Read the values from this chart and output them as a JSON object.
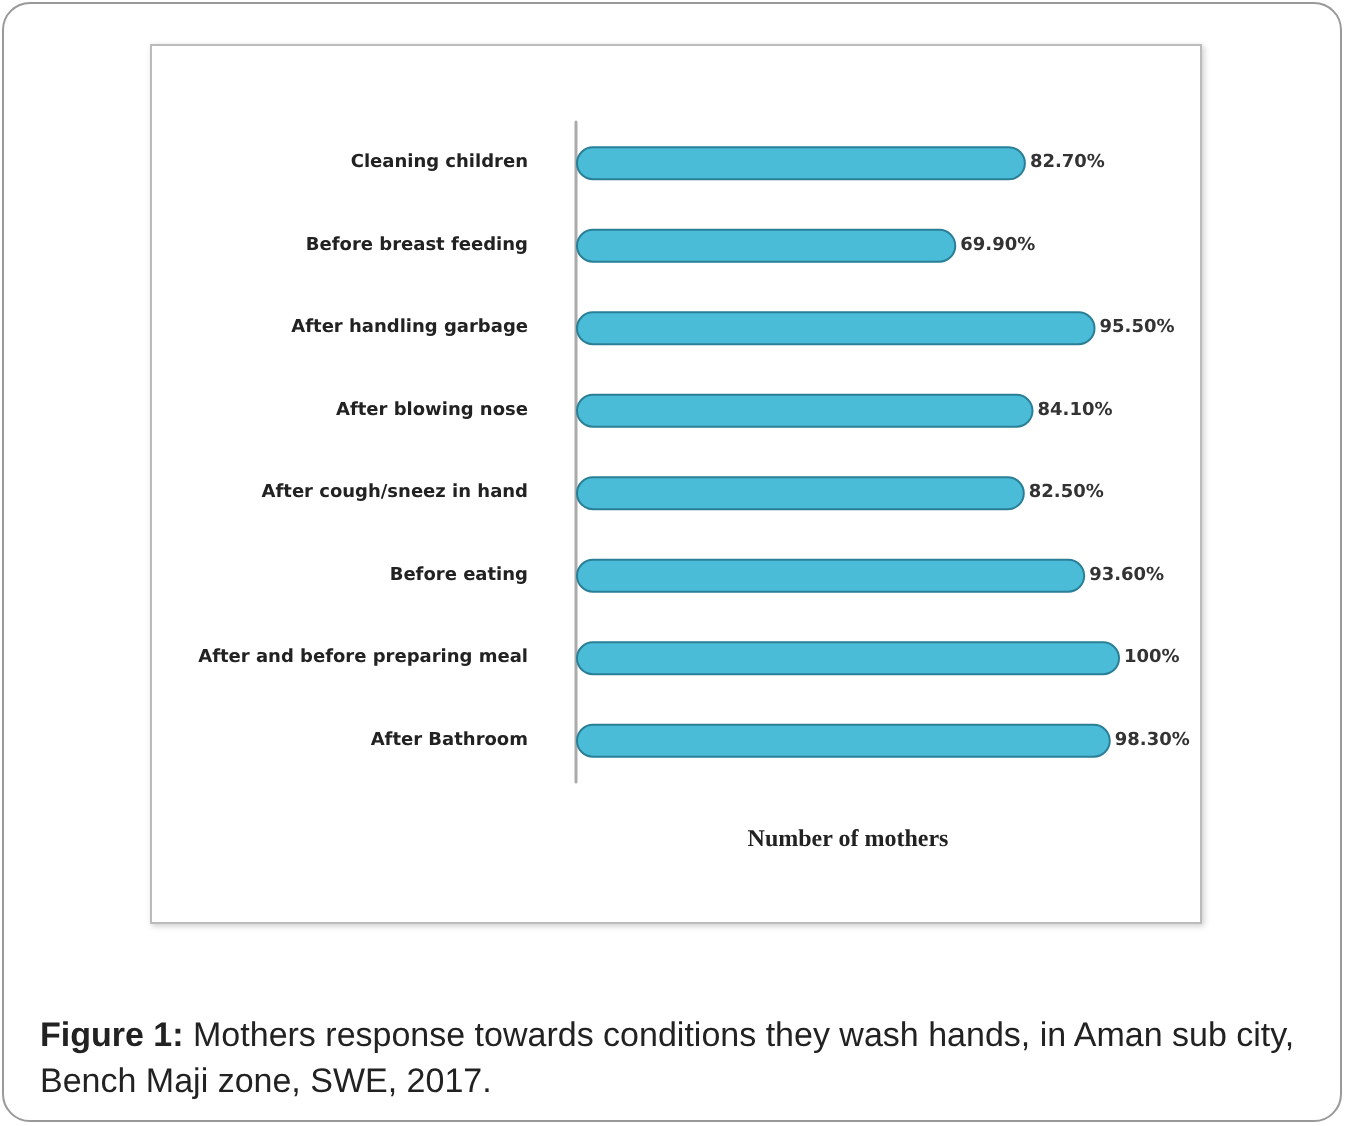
{
  "chart_data": {
    "type": "bar",
    "orientation": "horizontal",
    "xlabel": "Number of mothers",
    "categories": [
      "Cleaning children",
      "Before breast feeding",
      "After handling garbage",
      "After blowing nose",
      "After cough/sneez in hand",
      "Before eating",
      "After and before preparing meal",
      "After Bathroom"
    ],
    "values": [
      82.7,
      69.9,
      95.5,
      84.1,
      82.5,
      93.6,
      100,
      98.3
    ],
    "value_labels": [
      "82.70%",
      "69.90%",
      "95.50%",
      "84.10%",
      "82.50%",
      "93.60%",
      "100%",
      "98.30%"
    ],
    "color": "#4bbcd8",
    "annotations": [
      "Figure 1: Mothers response towards conditions they wash hands, in Aman sub city, Bench Maji zone, SWE, 2017."
    ]
  }
}
